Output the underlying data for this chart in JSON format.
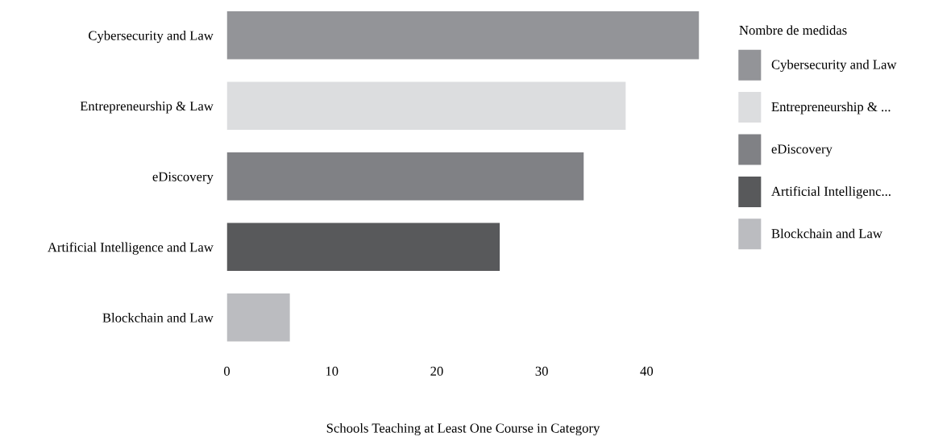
{
  "chart_data": {
    "type": "bar",
    "orientation": "horizontal",
    "xlabel": "Schools Teaching at Least One Course in Category",
    "legend_title": "Nombre de medidas",
    "legend": "top right",
    "grid": false,
    "categories": [
      "Cybersecurity and Law",
      "Entrepreneurship & Law",
      "eDiscovery",
      "Artificial Intelligence and Law",
      "Blockchain and Law"
    ],
    "series": [
      {
        "name": "Cybersecurity and Law",
        "color": "#939498",
        "values": [
          45,
          null,
          null,
          null,
          null
        ]
      },
      {
        "name": "Entrepreneurship & ...",
        "color": "#dcdddf",
        "values": [
          null,
          38,
          null,
          null,
          null
        ]
      },
      {
        "name": "eDiscovery",
        "color": "#808185",
        "values": [
          null,
          null,
          34,
          null,
          null
        ]
      },
      {
        "name": "Artificial Intelligenc...",
        "color": "#58595b",
        "values": [
          null,
          null,
          null,
          26,
          null
        ]
      },
      {
        "name": "Blockchain and Law",
        "color": "#bbbcc0",
        "values": [
          null,
          null,
          null,
          null,
          6
        ]
      }
    ],
    "xlim": [
      0,
      45
    ],
    "xticks": [
      0,
      10,
      20,
      30,
      40
    ]
  }
}
